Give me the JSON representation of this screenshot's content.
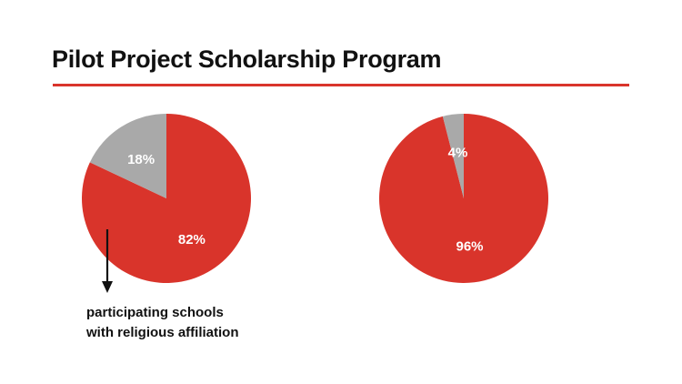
{
  "header": {
    "title": "Pilot Project Scholarship Program"
  },
  "annotation": {
    "lines": [
      "participating schools",
      "with religious affiliation"
    ]
  },
  "colors": {
    "accent": "#d9342b",
    "rule": "#d9342b",
    "slice_gray": "#a9a9a9",
    "arrow": "#111111"
  },
  "chart_data": [
    {
      "type": "pie",
      "title": "",
      "slices": [
        {
          "label": "82%",
          "value": 82,
          "color": "#d9342b"
        },
        {
          "label": "18%",
          "value": 18,
          "color": "#a9a9a9"
        }
      ]
    },
    {
      "type": "pie",
      "title": "",
      "slices": [
        {
          "label": "96%",
          "value": 96,
          "color": "#d9342b"
        },
        {
          "label": "4%",
          "value": 4,
          "color": "#a9a9a9"
        }
      ]
    }
  ]
}
